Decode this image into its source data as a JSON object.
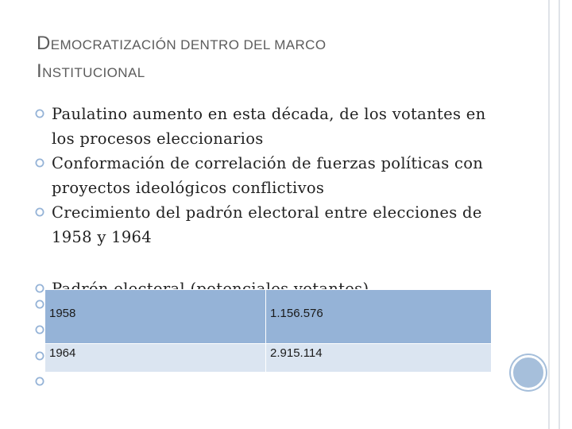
{
  "slide": {
    "title_line1_first": "D",
    "title_line1_rest": "emocratización dentro del marco",
    "title_line2_first": "I",
    "title_line2_rest": "nstitucional"
  },
  "bullets": [
    {
      "text": "Paulatino aumento en esta década, de los votantes en los procesos eleccionarios"
    },
    {
      "text": "Conformación de correlación de fuerzas políticas con proyectos ideológicos conflictivos"
    },
    {
      "text": "Crecimiento del padrón electoral entre elecciones de 1958 y 1964"
    },
    {
      "text": "Padrón electoral (potenciales votantes)"
    }
  ],
  "table": {
    "rows": [
      {
        "year": "1958",
        "voters": "1.156.576"
      },
      {
        "year": "1964",
        "voters": "2.915.114"
      }
    ]
  },
  "colors": {
    "accent": "#95b3d7",
    "row_light": "#dbe5f1",
    "title": "#5c5c5c",
    "decor_circle": "#a6bfdb"
  },
  "icons": {
    "bullet": "hollow-circle-bullet-icon",
    "decor": "decorative-circle-icon"
  }
}
